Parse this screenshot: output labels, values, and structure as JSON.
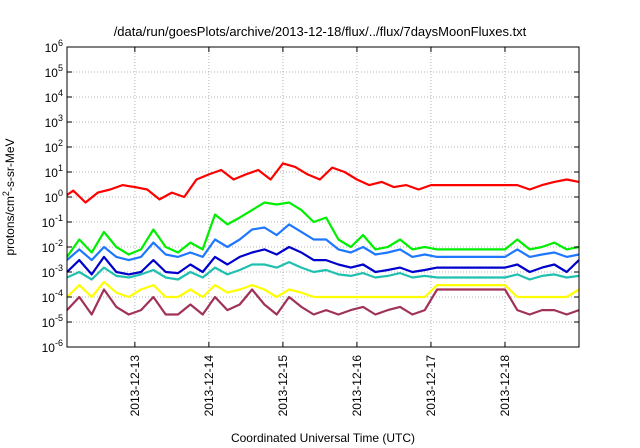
{
  "chart_data": {
    "type": "line",
    "title": "/data/run/goesPlots/archive/2013-12-18/flux/../flux/7daysMoonFluxes.txt",
    "xlabel": "Coordinated Universal Time (UTC)",
    "ylabel": {
      "pre": "protons/cm",
      "sup": "2",
      "post": "-s-sr-MeV"
    },
    "y_scale": "log",
    "ylim": [
      1e-06,
      1000000.0
    ],
    "y_ticks": [
      {
        "base": "10",
        "exp": "-6",
        "value": 1e-06
      },
      {
        "base": "10",
        "exp": "-5",
        "value": 1e-05
      },
      {
        "base": "10",
        "exp": "-4",
        "value": 0.0001
      },
      {
        "base": "10",
        "exp": "-3",
        "value": 0.001
      },
      {
        "base": "10",
        "exp": "-2",
        "value": 0.01
      },
      {
        "base": "10",
        "exp": "-1",
        "value": 0.1
      },
      {
        "base": "10",
        "exp": "0",
        "value": 1
      },
      {
        "base": "10",
        "exp": "1",
        "value": 10.0
      },
      {
        "base": "10",
        "exp": "2",
        "value": 100.0
      },
      {
        "base": "10",
        "exp": "3",
        "value": 1000.0
      },
      {
        "base": "10",
        "exp": "4",
        "value": 10000.0
      },
      {
        "base": "10",
        "exp": "5",
        "value": 100000.0
      },
      {
        "base": "10",
        "exp": "6",
        "value": 1000000.0
      }
    ],
    "xlim": [
      "2013-12-12T02:00",
      "2013-12-19T00:00"
    ],
    "x_ticks": [
      "2013-12-13",
      "2013-12-14",
      "2013-12-15",
      "2013-12-16",
      "2013-12-17",
      "2013-12-18"
    ],
    "grid": true,
    "series": [
      {
        "color": "#ff0000",
        "x": [
          "2013-12-12T02:00",
          "2013-12-12T04:00",
          "2013-12-12T08:00",
          "2013-12-12T12:00",
          "2013-12-12T16:00",
          "2013-12-12T20:00",
          "2013-12-13T00:00",
          "2013-12-13T04:00",
          "2013-12-13T08:00",
          "2013-12-13T12:00",
          "2013-12-13T16:00",
          "2013-12-13T20:00",
          "2013-12-14T00:00",
          "2013-12-14T04:00",
          "2013-12-14T08:00",
          "2013-12-14T12:00",
          "2013-12-14T16:00",
          "2013-12-14T20:00",
          "2013-12-15T00:00",
          "2013-12-15T04:00",
          "2013-12-15T08:00",
          "2013-12-15T12:00",
          "2013-12-15T16:00",
          "2013-12-15T20:00",
          "2013-12-16T00:00",
          "2013-12-16T04:00",
          "2013-12-16T08:00",
          "2013-12-16T12:00",
          "2013-12-16T16:00",
          "2013-12-16T20:00",
          "2013-12-17T00:00",
          "2013-12-17T12:00",
          "2013-12-18T00:00",
          "2013-12-18T04:00",
          "2013-12-18T08:00",
          "2013-12-18T12:00",
          "2013-12-18T16:00",
          "2013-12-18T20:00",
          "2013-12-19T00:00"
        ],
        "values": [
          1.2,
          1.8,
          0.6,
          1.5,
          2,
          3,
          2.5,
          2,
          0.8,
          1.5,
          1,
          5,
          8,
          12,
          5,
          8,
          12,
          5,
          22,
          16,
          8,
          5,
          15,
          10,
          5,
          3,
          4,
          2.5,
          3,
          2,
          3,
          3,
          3,
          3,
          2,
          3,
          4,
          5,
          4
        ]
      },
      {
        "color": "#00ee00",
        "x": [
          "2013-12-12T02:00",
          "2013-12-12T06:00",
          "2013-12-12T10:00",
          "2013-12-12T14:00",
          "2013-12-12T18:00",
          "2013-12-12T22:00",
          "2013-12-13T02:00",
          "2013-12-13T06:00",
          "2013-12-13T10:00",
          "2013-12-13T14:00",
          "2013-12-13T18:00",
          "2013-12-13T22:00",
          "2013-12-14T02:00",
          "2013-12-14T06:00",
          "2013-12-14T10:00",
          "2013-12-14T14:00",
          "2013-12-14T18:00",
          "2013-12-14T22:00",
          "2013-12-15T02:00",
          "2013-12-15T06:00",
          "2013-12-15T10:00",
          "2013-12-15T14:00",
          "2013-12-15T18:00",
          "2013-12-15T22:00",
          "2013-12-16T02:00",
          "2013-12-16T06:00",
          "2013-12-16T10:00",
          "2013-12-16T14:00",
          "2013-12-16T18:00",
          "2013-12-16T22:00",
          "2013-12-17T02:00",
          "2013-12-17T12:00",
          "2013-12-18T00:00",
          "2013-12-18T04:00",
          "2013-12-18T08:00",
          "2013-12-18T12:00",
          "2013-12-18T16:00",
          "2013-12-18T20:00",
          "2013-12-19T00:00"
        ],
        "values": [
          0.004,
          0.02,
          0.006,
          0.04,
          0.01,
          0.005,
          0.008,
          0.05,
          0.01,
          0.006,
          0.015,
          0.008,
          0.2,
          0.08,
          0.15,
          0.3,
          0.6,
          0.5,
          0.6,
          0.3,
          0.1,
          0.15,
          0.02,
          0.01,
          0.03,
          0.008,
          0.01,
          0.02,
          0.008,
          0.01,
          0.008,
          0.008,
          0.008,
          0.02,
          0.008,
          0.01,
          0.015,
          0.008,
          0.01
        ]
      },
      {
        "color": "#1e78ff",
        "x": [
          "2013-12-12T02:00",
          "2013-12-12T06:00",
          "2013-12-12T10:00",
          "2013-12-12T14:00",
          "2013-12-12T18:00",
          "2013-12-12T22:00",
          "2013-12-13T02:00",
          "2013-12-13T06:00",
          "2013-12-13T10:00",
          "2013-12-13T14:00",
          "2013-12-13T18:00",
          "2013-12-13T22:00",
          "2013-12-14T02:00",
          "2013-12-14T06:00",
          "2013-12-14T10:00",
          "2013-12-14T14:00",
          "2013-12-14T18:00",
          "2013-12-14T22:00",
          "2013-12-15T02:00",
          "2013-12-15T06:00",
          "2013-12-15T10:00",
          "2013-12-15T14:00",
          "2013-12-15T18:00",
          "2013-12-15T22:00",
          "2013-12-16T02:00",
          "2013-12-16T06:00",
          "2013-12-16T10:00",
          "2013-12-16T14:00",
          "2013-12-16T18:00",
          "2013-12-16T22:00",
          "2013-12-17T02:00",
          "2013-12-17T12:00",
          "2013-12-18T00:00",
          "2013-12-18T04:00",
          "2013-12-18T08:00",
          "2013-12-18T12:00",
          "2013-12-18T16:00",
          "2013-12-18T20:00",
          "2013-12-19T00:00"
        ],
        "values": [
          0.003,
          0.008,
          0.003,
          0.01,
          0.004,
          0.003,
          0.004,
          0.015,
          0.005,
          0.004,
          0.006,
          0.004,
          0.02,
          0.01,
          0.02,
          0.05,
          0.06,
          0.03,
          0.08,
          0.04,
          0.02,
          0.02,
          0.008,
          0.006,
          0.01,
          0.005,
          0.006,
          0.008,
          0.004,
          0.005,
          0.004,
          0.004,
          0.004,
          0.008,
          0.004,
          0.005,
          0.006,
          0.004,
          0.005
        ]
      },
      {
        "color": "#0000cc",
        "x": [
          "2013-12-12T02:00",
          "2013-12-12T06:00",
          "2013-12-12T10:00",
          "2013-12-12T14:00",
          "2013-12-12T18:00",
          "2013-12-12T22:00",
          "2013-12-13T02:00",
          "2013-12-13T06:00",
          "2013-12-13T10:00",
          "2013-12-13T14:00",
          "2013-12-13T18:00",
          "2013-12-13T22:00",
          "2013-12-14T02:00",
          "2013-12-14T06:00",
          "2013-12-14T10:00",
          "2013-12-14T14:00",
          "2013-12-14T18:00",
          "2013-12-14T22:00",
          "2013-12-15T02:00",
          "2013-12-15T06:00",
          "2013-12-15T10:00",
          "2013-12-15T14:00",
          "2013-12-15T18:00",
          "2013-12-15T22:00",
          "2013-12-16T02:00",
          "2013-12-16T06:00",
          "2013-12-16T10:00",
          "2013-12-16T14:00",
          "2013-12-16T18:00",
          "2013-12-16T22:00",
          "2013-12-17T02:00",
          "2013-12-17T12:00",
          "2013-12-18T00:00",
          "2013-12-18T04:00",
          "2013-12-18T08:00",
          "2013-12-18T12:00",
          "2013-12-18T16:00",
          "2013-12-18T20:00",
          "2013-12-19T00:00"
        ],
        "values": [
          0.001,
          0.003,
          0.0008,
          0.004,
          0.001,
          0.0008,
          0.001,
          0.003,
          0.001,
          0.0009,
          0.002,
          0.001,
          0.004,
          0.002,
          0.004,
          0.006,
          0.008,
          0.005,
          0.01,
          0.006,
          0.003,
          0.003,
          0.002,
          0.0015,
          0.002,
          0.001,
          0.0012,
          0.0015,
          0.001,
          0.0012,
          0.0015,
          0.0015,
          0.0015,
          0.002,
          0.001,
          0.0015,
          0.002,
          0.001,
          0.003
        ]
      },
      {
        "color": "#20c0b0",
        "x": [
          "2013-12-12T02:00",
          "2013-12-12T06:00",
          "2013-12-12T10:00",
          "2013-12-12T14:00",
          "2013-12-12T18:00",
          "2013-12-12T22:00",
          "2013-12-13T02:00",
          "2013-12-13T06:00",
          "2013-12-13T10:00",
          "2013-12-13T14:00",
          "2013-12-13T18:00",
          "2013-12-13T22:00",
          "2013-12-14T02:00",
          "2013-12-14T06:00",
          "2013-12-14T10:00",
          "2013-12-14T14:00",
          "2013-12-14T18:00",
          "2013-12-14T22:00",
          "2013-12-15T02:00",
          "2013-12-15T06:00",
          "2013-12-15T10:00",
          "2013-12-15T14:00",
          "2013-12-15T18:00",
          "2013-12-15T22:00",
          "2013-12-16T02:00",
          "2013-12-16T06:00",
          "2013-12-16T10:00",
          "2013-12-16T14:00",
          "2013-12-16T18:00",
          "2013-12-16T22:00",
          "2013-12-17T02:00",
          "2013-12-17T12:00",
          "2013-12-18T00:00",
          "2013-12-18T04:00",
          "2013-12-18T08:00",
          "2013-12-18T12:00",
          "2013-12-18T16:00",
          "2013-12-18T20:00",
          "2013-12-19T00:00"
        ],
        "values": [
          0.0006,
          0.001,
          0.0005,
          0.0015,
          0.0007,
          0.0006,
          0.0008,
          0.0012,
          0.0006,
          0.0005,
          0.001,
          0.0006,
          0.0015,
          0.0008,
          0.0012,
          0.002,
          0.002,
          0.0015,
          0.0025,
          0.0015,
          0.001,
          0.0012,
          0.0008,
          0.0007,
          0.0009,
          0.0006,
          0.0007,
          0.0009,
          0.0006,
          0.0007,
          0.0006,
          0.0006,
          0.0006,
          0.0008,
          0.0005,
          0.0007,
          0.0008,
          0.0006,
          0.0007
        ]
      },
      {
        "color": "#ffff00",
        "x": [
          "2013-12-12T02:00",
          "2013-12-12T06:00",
          "2013-12-12T10:00",
          "2013-12-12T14:00",
          "2013-12-12T18:00",
          "2013-12-12T22:00",
          "2013-12-13T02:00",
          "2013-12-13T06:00",
          "2013-12-13T10:00",
          "2013-12-13T14:00",
          "2013-12-13T18:00",
          "2013-12-13T22:00",
          "2013-12-14T02:00",
          "2013-12-14T06:00",
          "2013-12-14T10:00",
          "2013-12-14T14:00",
          "2013-12-14T18:00",
          "2013-12-14T22:00",
          "2013-12-15T02:00",
          "2013-12-15T06:00",
          "2013-12-15T10:00",
          "2013-12-15T14:00",
          "2013-12-15T18:00",
          "2013-12-15T22:00",
          "2013-12-16T02:00",
          "2013-12-16T06:00",
          "2013-12-16T10:00",
          "2013-12-16T14:00",
          "2013-12-16T18:00",
          "2013-12-16T22:00",
          "2013-12-17T02:00",
          "2013-12-17T12:00",
          "2013-12-18T00:00",
          "2013-12-18T04:00",
          "2013-12-18T08:00",
          "2013-12-18T12:00",
          "2013-12-18T16:00",
          "2013-12-18T20:00",
          "2013-12-19T00:00"
        ],
        "values": [
          0.0001,
          0.0003,
          0.0001,
          0.0004,
          0.00015,
          0.0001,
          0.0002,
          0.0003,
          0.0001,
          0.0001,
          0.0002,
          0.0001,
          0.0003,
          0.00015,
          0.0002,
          0.0003,
          0.0002,
          0.0001,
          0.0002,
          0.00015,
          0.0001,
          0.0001,
          0.0001,
          0.0001,
          0.0001,
          0.0001,
          0.0001,
          0.0001,
          0.0001,
          0.0001,
          0.0003,
          0.0003,
          0.0003,
          0.0001,
          0.0001,
          0.0001,
          0.0001,
          0.0001,
          0.0002
        ]
      },
      {
        "color": "#a0325a",
        "x": [
          "2013-12-12T02:00",
          "2013-12-12T06:00",
          "2013-12-12T10:00",
          "2013-12-12T14:00",
          "2013-12-12T18:00",
          "2013-12-12T22:00",
          "2013-12-13T02:00",
          "2013-12-13T06:00",
          "2013-12-13T10:00",
          "2013-12-13T14:00",
          "2013-12-13T18:00",
          "2013-12-13T22:00",
          "2013-12-14T02:00",
          "2013-12-14T06:00",
          "2013-12-14T10:00",
          "2013-12-14T14:00",
          "2013-12-14T18:00",
          "2013-12-14T22:00",
          "2013-12-15T02:00",
          "2013-12-15T06:00",
          "2013-12-15T10:00",
          "2013-12-15T14:00",
          "2013-12-15T18:00",
          "2013-12-15T22:00",
          "2013-12-16T02:00",
          "2013-12-16T06:00",
          "2013-12-16T10:00",
          "2013-12-16T14:00",
          "2013-12-16T18:00",
          "2013-12-16T22:00",
          "2013-12-17T02:00",
          "2013-12-17T12:00",
          "2013-12-18T00:00",
          "2013-12-18T04:00",
          "2013-12-18T08:00",
          "2013-12-18T12:00",
          "2013-12-18T16:00",
          "2013-12-18T20:00",
          "2013-12-19T00:00"
        ],
        "values": [
          3e-05,
          0.0001,
          2e-05,
          0.0002,
          4e-05,
          2e-05,
          3e-05,
          0.0001,
          2e-05,
          2e-05,
          5e-05,
          2e-05,
          0.0001,
          3e-05,
          5e-05,
          0.0002,
          5e-05,
          2e-05,
          0.0001,
          4e-05,
          2e-05,
          3e-05,
          2e-05,
          3e-05,
          4e-05,
          2e-05,
          3e-05,
          4e-05,
          2e-05,
          3e-05,
          0.0002,
          0.0002,
          0.0002,
          3e-05,
          2e-05,
          3e-05,
          3e-05,
          2e-05,
          3e-05
        ]
      }
    ]
  }
}
